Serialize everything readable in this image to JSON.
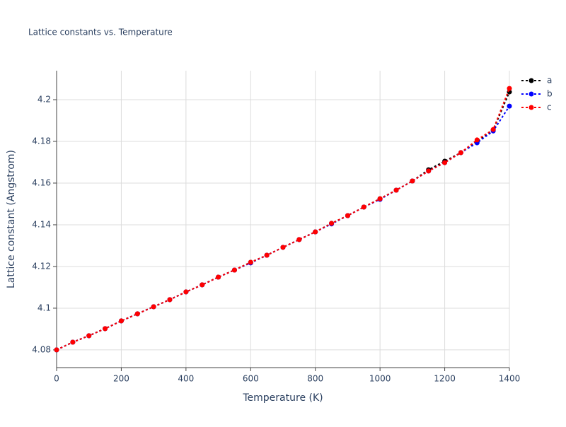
{
  "chart_data": {
    "type": "line",
    "title": "Lattice constants vs. Temperature",
    "x_label": "Temperature (K)",
    "y_label": "Lattice constant (Angstrom)",
    "x": [
      0,
      50,
      100,
      150,
      200,
      250,
      300,
      350,
      400,
      450,
      500,
      550,
      600,
      650,
      700,
      750,
      800,
      850,
      900,
      950,
      1000,
      1050,
      1100,
      1150,
      1200,
      1250,
      1300,
      1350,
      1400
    ],
    "series": [
      {
        "name": "a",
        "color": "#000000",
        "values": [
          4.08,
          4.0837,
          4.0868,
          4.0902,
          4.0939,
          4.0973,
          4.1007,
          4.1041,
          4.1078,
          4.1112,
          4.1149,
          4.1183,
          4.122,
          4.1254,
          4.1292,
          4.1329,
          4.1366,
          4.1407,
          4.1444,
          4.1485,
          4.1525,
          4.1566,
          4.161,
          4.1664,
          4.1705,
          4.1746,
          4.18,
          4.1854,
          4.2037
        ]
      },
      {
        "name": "b",
        "color": "#0000ff",
        "values": [
          4.08,
          4.0837,
          4.0868,
          4.0902,
          4.0939,
          4.0973,
          4.1007,
          4.1041,
          4.1078,
          4.1112,
          4.1149,
          4.1183,
          4.1217,
          4.1254,
          4.1292,
          4.1329,
          4.1366,
          4.1404,
          4.1444,
          4.1485,
          4.1522,
          4.1566,
          4.161,
          4.1658,
          4.1698,
          4.1746,
          4.1793,
          4.185,
          4.1969
        ]
      },
      {
        "name": "c",
        "color": "#ff0000",
        "values": [
          4.08,
          4.0837,
          4.0868,
          4.0902,
          4.0939,
          4.0973,
          4.1007,
          4.1041,
          4.1078,
          4.1112,
          4.1149,
          4.1183,
          4.122,
          4.1254,
          4.1292,
          4.1329,
          4.1366,
          4.1407,
          4.1444,
          4.1485,
          4.1525,
          4.1566,
          4.161,
          4.1658,
          4.1698,
          4.1746,
          4.1807,
          4.1857,
          4.2054
        ]
      }
    ],
    "xlim": [
      0,
      1400
    ],
    "xticks": [
      0,
      200,
      400,
      600,
      800,
      1000,
      1200,
      1400
    ],
    "ylim": [
      4.0715,
      4.2139
    ],
    "yticks": [
      4.08,
      4.1,
      4.12,
      4.14,
      4.16,
      4.18,
      4.2
    ],
    "grid": true,
    "legend": "right"
  }
}
